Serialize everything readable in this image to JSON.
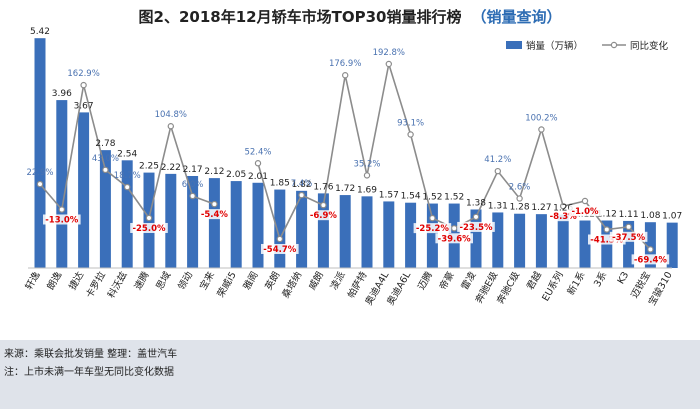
{
  "title": {
    "main": "图2、2018年12月轿车市场TOP30销量排行榜",
    "sub": "（销量查询）"
  },
  "footer": {
    "line1": "来源：乘联会批发销量  整理：盖世汽车",
    "line2": "注：上市未满一年车型无同比变化数据"
  },
  "colors": {
    "bar": "#3a6fba",
    "line": "#8c8c8c",
    "negative_label": "#e00000",
    "positive_label": "#4a72b0",
    "footer_bg": "#dfe3ea"
  },
  "chart_data": {
    "type": "bar",
    "categories": [
      "轩逸",
      "朗逸",
      "捷达",
      "卡罗拉",
      "科沃兹",
      "速腾",
      "思域",
      "领动",
      "宝来",
      "荣威i5",
      "雅阁",
      "英朗",
      "桑塔纳",
      "威朗",
      "凌派",
      "帕萨特",
      "奥迪A4L",
      "奥迪A6L",
      "迈腾",
      "帝豪",
      "雷凌",
      "奔驰E级",
      "奔驰C级",
      "君越",
      "EU系列",
      "新1系",
      "3系",
      "K3",
      "迈锐宝",
      "宝骏310"
    ],
    "series": [
      {
        "name": "销量（万辆）",
        "type": "bar",
        "values": [
          5.42,
          3.96,
          3.67,
          2.78,
          2.54,
          2.25,
          2.22,
          2.17,
          2.12,
          2.05,
          2.01,
          1.85,
          1.82,
          1.76,
          1.72,
          1.69,
          1.57,
          1.54,
          1.52,
          1.52,
          1.38,
          1.31,
          1.28,
          1.27,
          1.26,
          1.12,
          1.12,
          1.11,
          1.08,
          1.07
        ],
        "labels": [
          "5.42",
          "3.96",
          "3.67",
          "2.78",
          "2.54",
          "2.25",
          "2.22",
          "2.17",
          "2.12",
          "2.05",
          "2.01",
          "1.85",
          "1.82",
          "1.76",
          "1.72",
          "1.69",
          "1.57",
          "1.54",
          "1.52",
          "1.52",
          "1.38",
          "1.31",
          "1.28",
          "1.27",
          "1.26",
          "1.12",
          "1.12",
          "1.11",
          "1.08",
          "1.07"
        ]
      },
      {
        "name": "同比变化",
        "type": "line",
        "values": [
          22.9,
          -13.0,
          162.9,
          43.0,
          18.7,
          -25.0,
          104.8,
          6.0,
          -5.4,
          null,
          52.4,
          -54.7,
          7.4,
          -6.9,
          176.9,
          35.2,
          192.8,
          93.1,
          -25.2,
          -39.6,
          -23.5,
          41.2,
          2.6,
          100.2,
          -8.3,
          -1.0,
          -41.3,
          -37.5,
          -69.4,
          null
        ],
        "labels": [
          "22.9%",
          "-13.0%",
          "162.9%",
          "43.0%",
          "18.7%",
          "-25.0%",
          "104.8%",
          "6.0%",
          "-5.4%",
          "",
          "52.4%",
          "-54.7%",
          "7.4%",
          "-6.9%",
          "176.9%",
          "35.2%",
          "192.8%",
          "93.1%",
          "-25.2%",
          "-39.6%",
          "-23.5%",
          "41.2%",
          "2.6%",
          "100.2%",
          "-8.3%",
          "-1.0%",
          "-41.3%",
          "-37.5%",
          "-69.4%",
          ""
        ]
      }
    ],
    "xlabel": "",
    "ylabel": "",
    "grid": false,
    "legend_position": "top-right"
  }
}
